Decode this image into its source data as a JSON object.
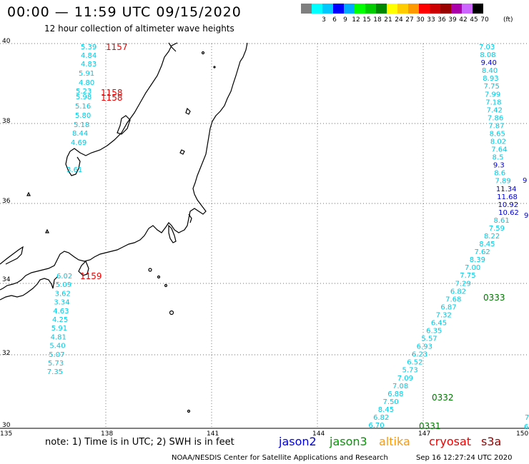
{
  "header": {
    "title": "00:00 — 11:59 UTC 09/15/2020",
    "subtitle": "12 hour collection of altimeter wave heights"
  },
  "scale": {
    "unit": "(ft)",
    "bins": [
      {
        "label": "",
        "color": "#7f7f7f"
      },
      {
        "label": "3",
        "color": "#00ffff"
      },
      {
        "label": "6",
        "color": "#00c8ff"
      },
      {
        "label": "9",
        "color": "#0000ff"
      },
      {
        "label": "12",
        "color": "#00aaff"
      },
      {
        "label": "15",
        "color": "#00ff00"
      },
      {
        "label": "18",
        "color": "#00cc00"
      },
      {
        "label": "21",
        "color": "#008800"
      },
      {
        "label": "24",
        "color": "#ffff00"
      },
      {
        "label": "27",
        "color": "#ffcc00"
      },
      {
        "label": "30",
        "color": "#ff9900"
      },
      {
        "label": "33",
        "color": "#ff0000"
      },
      {
        "label": "36",
        "color": "#cc0000"
      },
      {
        "label": "39",
        "color": "#990000"
      },
      {
        "label": "42",
        "color": "#aa00aa"
      },
      {
        "label": "45",
        "color": "#cc66ff"
      },
      {
        "label": "70",
        "color": "#000000"
      }
    ]
  },
  "axes": {
    "lat_labels": [
      "40",
      "38",
      "36",
      "34",
      "32",
      "30"
    ],
    "lon_labels": [
      "135",
      "138",
      "141",
      "144",
      "147",
      "150"
    ]
  },
  "colors": {
    "cyan": "#00c8e0",
    "blue": "#0000cc",
    "red": "#ee0000",
    "green": "#007700"
  },
  "west_track": {
    "values": [
      "5.39",
      "4.84",
      "4.83",
      "5.91",
      "4.80",
      "5.23",
      "5.98",
      "5.16",
      "5.80",
      "5.18",
      "8.44",
      "4.69",
      "3.61"
    ],
    "times": [
      "1157",
      "1158",
      "1158"
    ]
  },
  "south_track": {
    "values": [
      "6.02",
      "5.09",
      "3.62",
      "3.34",
      "4.63",
      "4.25",
      "5.91",
      "4.81",
      "5.40",
      "5.07",
      "5.73",
      "7.35"
    ],
    "time": "1159"
  },
  "east_track": {
    "values": [
      {
        "v": "7.03",
        "c": "cyan"
      },
      {
        "v": "8.08",
        "c": "cyan"
      },
      {
        "v": "9.40",
        "c": "blue"
      },
      {
        "v": "8.40",
        "c": "cyan"
      },
      {
        "v": "8.93",
        "c": "cyan"
      },
      {
        "v": "7.75",
        "c": "cyan"
      },
      {
        "v": "7.99",
        "c": "cyan"
      },
      {
        "v": "7.18",
        "c": "cyan"
      },
      {
        "v": "7.42",
        "c": "cyan"
      },
      {
        "v": "7.86",
        "c": "cyan"
      },
      {
        "v": "7.87",
        "c": "cyan"
      },
      {
        "v": "8.65",
        "c": "cyan"
      },
      {
        "v": "8.02",
        "c": "cyan"
      },
      {
        "v": "7.64",
        "c": "cyan"
      },
      {
        "v": "8.5",
        "c": "cyan"
      },
      {
        "v": "9.3",
        "c": "blue"
      },
      {
        "v": "8.6",
        "c": "cyan"
      },
      {
        "v": "7.89",
        "c": "cyan"
      },
      {
        "v": "11.34",
        "c": "blue"
      },
      {
        "v": "11.68",
        "c": "blue"
      },
      {
        "v": "10.92",
        "c": "blue"
      },
      {
        "v": "10.62",
        "c": "blue"
      },
      {
        "v": "8.61",
        "c": "cyan"
      },
      {
        "v": "7.59",
        "c": "cyan"
      },
      {
        "v": "8.22",
        "c": "cyan"
      },
      {
        "v": "8.45",
        "c": "cyan"
      },
      {
        "v": "7.62",
        "c": "cyan"
      },
      {
        "v": "8.39",
        "c": "cyan"
      },
      {
        "v": "7.00",
        "c": "cyan"
      },
      {
        "v": "7.75",
        "c": "cyan"
      },
      {
        "v": "7.29",
        "c": "cyan"
      },
      {
        "v": "6.82",
        "c": "cyan"
      },
      {
        "v": "7.68",
        "c": "cyan"
      },
      {
        "v": "6.87",
        "c": "cyan"
      },
      {
        "v": "7.32",
        "c": "cyan"
      },
      {
        "v": "6.45",
        "c": "cyan"
      },
      {
        "v": "6.35",
        "c": "cyan"
      },
      {
        "v": "5.57",
        "c": "cyan"
      },
      {
        "v": "6.93",
        "c": "cyan"
      },
      {
        "v": "6.23",
        "c": "cyan"
      },
      {
        "v": "6.52",
        "c": "cyan"
      },
      {
        "v": "5.73",
        "c": "cyan"
      },
      {
        "v": "7.09",
        "c": "cyan"
      },
      {
        "v": "7.08",
        "c": "cyan"
      },
      {
        "v": "6.88",
        "c": "cyan"
      },
      {
        "v": "7.50",
        "c": "cyan"
      },
      {
        "v": "8.45",
        "c": "cyan"
      },
      {
        "v": "6.82",
        "c": "cyan"
      },
      {
        "v": "6.70",
        "c": "cyan"
      }
    ],
    "edge_values": [
      {
        "v": "9",
        "c": "blue"
      },
      {
        "v": "9",
        "c": "blue"
      },
      {
        "v": "7",
        "c": "cyan"
      },
      {
        "v": "6",
        "c": "cyan"
      }
    ],
    "times": [
      "0333",
      "0332",
      "0331"
    ]
  },
  "footer": {
    "note": "note: 1) Time is in UTC; 2) SWH is in feet",
    "satellites": [
      {
        "name": "jason2",
        "color": "#0000dd"
      },
      {
        "name": "jason3",
        "color": "#009900"
      },
      {
        "name": "altika",
        "color": "#ff9900"
      },
      {
        "name": "cryosat",
        "color": "#ee0000"
      },
      {
        "name": "s3a",
        "color": "#990000"
      }
    ],
    "credit": "NOAA/NESDIS Center for Satellite Applications and Research",
    "timestamp": "Sep 16 12:27:24 UTC 2020"
  }
}
